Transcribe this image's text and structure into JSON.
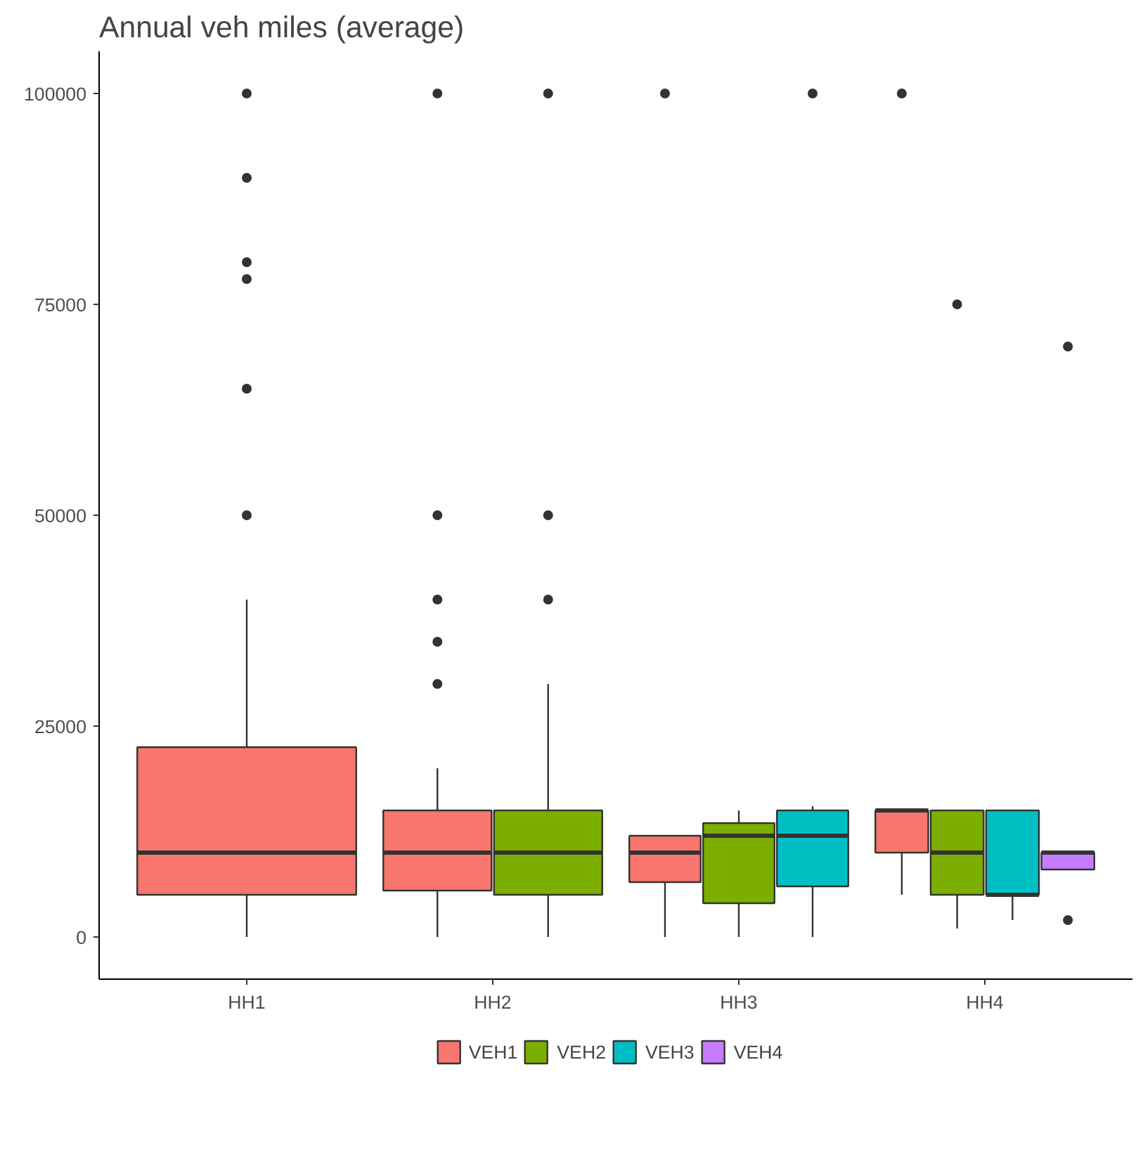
{
  "chart_data": {
    "type": "box",
    "title": "Annual veh miles (average)",
    "categories": [
      "HH1",
      "HH2",
      "HH3",
      "HH4"
    ],
    "ylim": [
      -5000,
      105000
    ],
    "yticks": [
      0,
      25000,
      50000,
      75000,
      100000
    ],
    "grid": false,
    "legend": "bottom",
    "series": [
      {
        "name": "VEH1",
        "color": "#f8766d",
        "boxes": [
          {
            "low": 0,
            "q1": 5000,
            "median": 10000,
            "q3": 22500,
            "high": 40000,
            "outliers": [
              50000,
              65000,
              78000,
              80000,
              90000,
              100000
            ]
          },
          {
            "low": 0,
            "q1": 5500,
            "median": 10000,
            "q3": 15000,
            "high": 20000,
            "outliers": [
              30000,
              35000,
              40000,
              50000,
              100000
            ]
          },
          {
            "low": 0,
            "q1": 6500,
            "median": 10000,
            "q3": 12000,
            "high": 12000,
            "outliers": [
              100000
            ]
          },
          {
            "low": 5000,
            "q1": 10000,
            "median": 15000,
            "q3": 15000,
            "high": 15000,
            "outliers": [
              100000
            ]
          }
        ]
      },
      {
        "name": "VEH2",
        "color": "#7cae00",
        "boxes": [
          null,
          {
            "low": 0,
            "q1": 5000,
            "median": 10000,
            "q3": 15000,
            "high": 30000,
            "outliers": [
              40000,
              50000,
              100000
            ]
          },
          {
            "low": 0,
            "q1": 4000,
            "median": 12000,
            "q3": 13500,
            "high": 15000
          },
          {
            "low": 1000,
            "q1": 5000,
            "median": 10000,
            "q3": 15000,
            "high": 15000,
            "outliers": [
              75000
            ]
          }
        ]
      },
      {
        "name": "VEH3",
        "color": "#00bfc4",
        "boxes": [
          null,
          null,
          {
            "low": 0,
            "q1": 6000,
            "median": 12000,
            "q3": 15000,
            "high": 15500,
            "outliers": [
              100000
            ]
          },
          {
            "low": 2000,
            "q1": 5000,
            "median": 5000,
            "q3": 15000,
            "high": 15000
          }
        ]
      },
      {
        "name": "VEH4",
        "color": "#c77cff",
        "boxes": [
          null,
          null,
          null,
          {
            "low": 8000,
            "q1": 8000,
            "median": 10000,
            "q3": 10000,
            "high": 10000,
            "outliers": [
              2000,
              70000
            ]
          }
        ]
      }
    ]
  }
}
